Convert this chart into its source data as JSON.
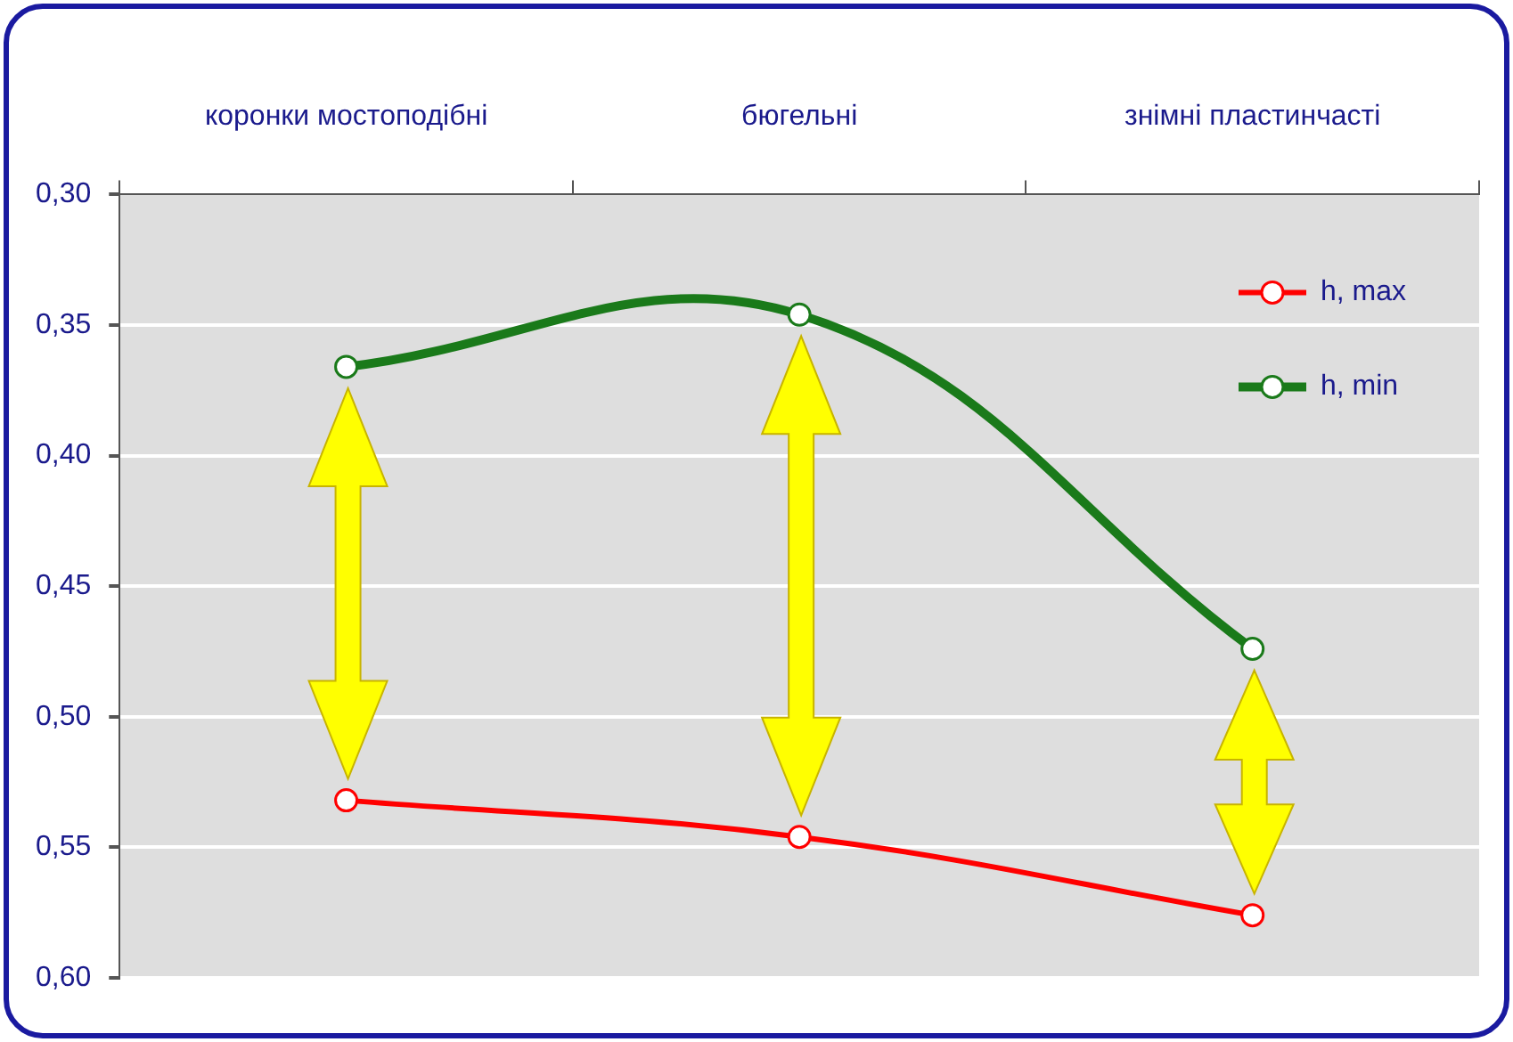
{
  "chart_data": {
    "type": "line",
    "categories": [
      "коронки мостоподібні",
      "бюгельні",
      "знімні пластинчасті"
    ],
    "series": [
      {
        "name": "h, max",
        "color": "#ff0000",
        "values": [
          0.532,
          0.546,
          0.576
        ]
      },
      {
        "name": "h, min",
        "color": "#1a7a1a",
        "values": [
          0.366,
          0.346,
          0.474
        ]
      }
    ],
    "ylim": [
      0.6,
      0.3
    ],
    "yticks": [
      {
        "value": 0.3,
        "label": "0,30"
      },
      {
        "value": 0.35,
        "label": "0,35"
      },
      {
        "value": 0.4,
        "label": "0,40"
      },
      {
        "value": 0.45,
        "label": "0,45"
      },
      {
        "value": 0.5,
        "label": "0,50"
      },
      {
        "value": 0.55,
        "label": "0,55"
      },
      {
        "value": 0.6,
        "label": "0,60"
      }
    ],
    "grid": "y",
    "legend": "top right",
    "marker": "circle",
    "line_style": "solid"
  }
}
